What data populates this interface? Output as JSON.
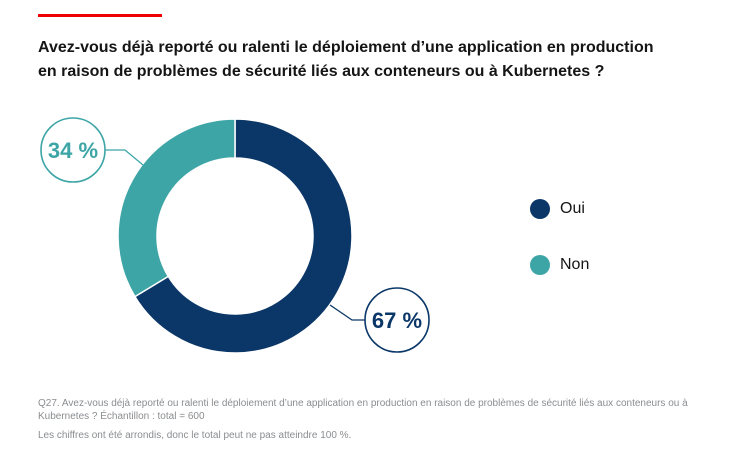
{
  "title_lines": [
    "Avez-vous déjà reporté ou ralenti le déploiement d’une application en production",
    "en raison de problèmes de sécurité liés aux conteneurs ou à Kubernetes ?"
  ],
  "colors": {
    "accent": "#ee0000",
    "oui": "#0b3768",
    "non": "#3da5a6"
  },
  "chart_data": {
    "type": "pie",
    "variant": "donut",
    "title": "Avez-vous déjà reporté ou ralenti le déploiement d’une application en production en raison de problèmes de sécurité liés aux conteneurs ou à Kubernetes ?",
    "categories": [
      "Oui",
      "Non"
    ],
    "values": [
      67,
      34
    ],
    "labels": [
      "67 %",
      "34 %"
    ],
    "legend": "right"
  },
  "legend": [
    {
      "label": "Oui"
    },
    {
      "label": "Non"
    }
  ],
  "footnote": {
    "question": "Q27. Avez-vous déjà reporté ou ralenti le déploiement d’une application en production en raison de problèmes de sécurité liés aux conteneurs ou à Kubernetes ? Échantillon : total = 600",
    "rounding": "Les chiffres ont été arrondis, donc le total peut ne pas atteindre 100 %."
  }
}
